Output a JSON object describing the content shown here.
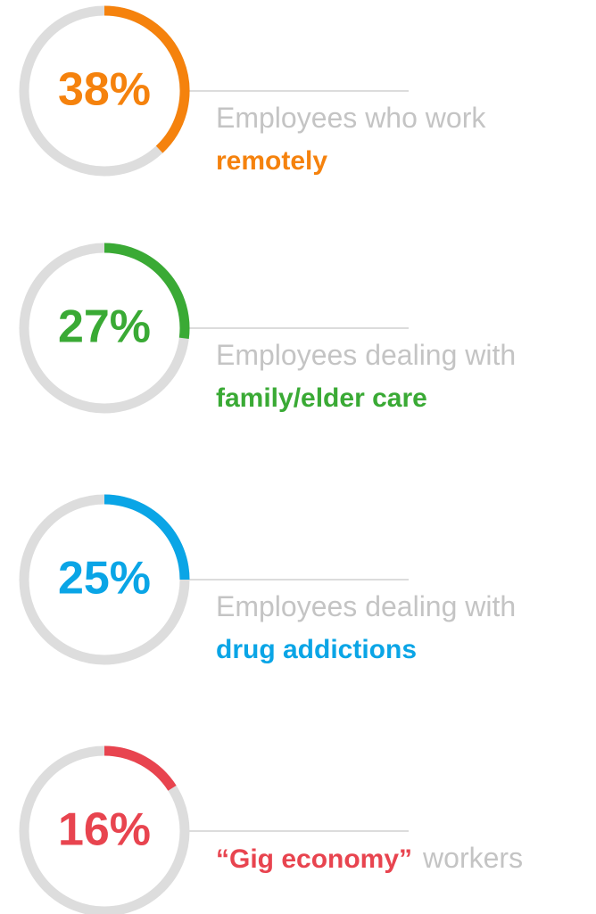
{
  "chart_data": [
    {
      "type": "gauge",
      "value": 38,
      "value_label": "38%",
      "ylim": [
        0,
        100
      ],
      "color": "#f5820d",
      "lines": [
        [
          {
            "text": "Employees who work",
            "highlight": false
          }
        ],
        [
          {
            "text": "remotely",
            "highlight": true
          }
        ]
      ]
    },
    {
      "type": "gauge",
      "value": 27,
      "value_label": "27%",
      "ylim": [
        0,
        100
      ],
      "color": "#3aaa35",
      "lines": [
        [
          {
            "text": "Employees dealing with",
            "highlight": false
          }
        ],
        [
          {
            "text": "family/elder care",
            "highlight": true
          }
        ]
      ]
    },
    {
      "type": "gauge",
      "value": 25,
      "value_label": "25%",
      "ylim": [
        0,
        100
      ],
      "color": "#0aa5e6",
      "lines": [
        [
          {
            "text": "Employees dealing with",
            "highlight": false
          }
        ],
        [
          {
            "text": "drug addictions",
            "highlight": true
          }
        ]
      ]
    },
    {
      "type": "gauge",
      "value": 16,
      "value_label": "16%",
      "ylim": [
        0,
        100
      ],
      "color": "#e8444f",
      "lines": [
        [
          {
            "text": "“Gig economy”",
            "highlight": true
          },
          {
            "text": "workers",
            "highlight": false
          }
        ]
      ]
    }
  ]
}
